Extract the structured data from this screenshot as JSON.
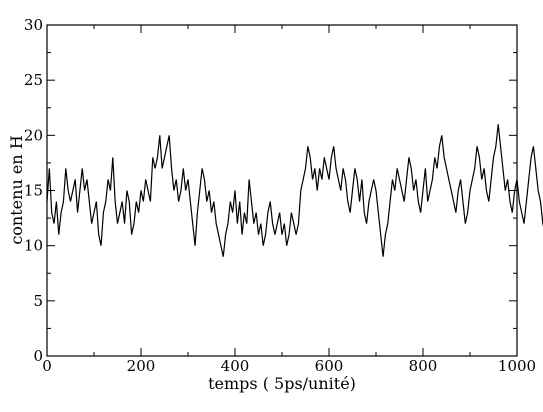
{
  "chart_data": {
    "type": "line",
    "xlabel": "temps ( 5ps/unité)",
    "ylabel": "contenu en H",
    "xlim": [
      0,
      1000
    ],
    "ylim": [
      0,
      30
    ],
    "x_ticks": [
      0,
      200,
      400,
      600,
      800,
      1000
    ],
    "y_ticks": [
      0,
      5,
      10,
      15,
      20,
      25,
      30
    ],
    "grid": false,
    "line_color": "#000000",
    "series": [
      {
        "step": 5,
        "x_start": 0,
        "values": [
          14,
          17,
          13,
          12,
          14,
          11,
          13,
          14,
          17,
          15,
          14,
          15,
          16,
          13,
          15,
          17,
          15,
          16,
          14,
          12,
          13,
          14,
          11,
          10,
          13,
          14,
          16,
          15,
          18,
          14,
          12,
          13,
          14,
          12,
          15,
          14,
          11,
          12,
          14,
          13,
          15,
          14,
          16,
          15,
          14,
          18,
          17,
          18,
          20,
          17,
          18,
          19,
          20,
          17,
          15,
          16,
          14,
          15,
          17,
          15,
          16,
          14,
          12,
          10,
          13,
          15,
          17,
          16,
          14,
          15,
          13,
          14,
          12,
          11,
          10,
          9,
          11,
          12,
          14,
          13,
          15,
          12,
          14,
          11,
          13,
          12,
          16,
          14,
          12,
          13,
          11,
          12,
          10,
          11,
          13,
          14,
          12,
          11,
          12,
          13,
          11,
          12,
          10,
          11,
          13,
          12,
          11,
          12,
          15,
          16,
          17,
          19,
          18,
          16,
          17,
          15,
          17,
          16,
          18,
          17,
          16,
          18,
          19,
          17,
          16,
          15,
          17,
          16,
          14,
          13,
          15,
          17,
          16,
          14,
          16,
          13,
          12,
          14,
          15,
          16,
          15,
          13,
          11,
          9,
          11,
          12,
          14,
          16,
          15,
          17,
          16,
          15,
          14,
          16,
          18,
          17,
          15,
          16,
          14,
          13,
          15,
          17,
          14,
          15,
          16,
          18,
          17,
          19,
          20,
          18,
          17,
          16,
          15,
          14,
          13,
          15,
          16,
          14,
          12,
          13,
          15,
          16,
          17,
          19,
          18,
          16,
          17,
          15,
          14,
          16,
          18,
          19,
          21,
          19,
          17,
          15,
          16,
          14,
          13,
          15,
          16,
          14,
          13,
          12,
          14,
          16,
          18,
          19,
          17,
          15,
          14,
          12,
          11,
          13,
          12,
          11,
          10,
          9,
          12,
          13,
          14,
          12,
          15,
          14,
          12,
          13,
          11,
          12,
          13,
          14,
          12,
          15,
          16,
          14,
          13,
          12,
          11,
          10,
          9,
          10,
          11,
          12,
          10,
          9,
          11,
          12,
          11,
          9,
          10,
          9,
          7,
          5,
          6,
          8,
          7,
          9,
          11,
          10,
          12,
          11,
          10,
          9,
          10,
          11,
          10,
          9,
          8,
          9,
          10,
          11,
          9,
          10,
          12,
          11,
          10,
          12,
          13,
          12,
          11,
          13,
          14,
          12,
          11,
          13,
          12,
          14,
          13,
          15,
          14,
          12,
          13,
          14,
          15,
          16,
          17,
          16,
          15,
          17,
          16,
          17,
          18,
          16,
          18,
          19,
          17,
          18,
          20,
          19,
          21,
          20,
          19,
          22,
          21,
          19,
          20,
          18,
          17,
          16,
          15,
          14,
          13,
          12,
          9,
          10,
          11,
          12,
          10,
          13
        ]
      }
    ]
  }
}
